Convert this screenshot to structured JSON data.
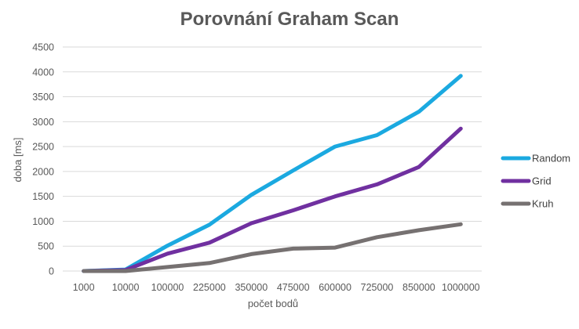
{
  "chart_data": {
    "type": "line",
    "title": "Porovnání Graham Scan",
    "xlabel": "počet bodů",
    "ylabel": "doba [ms]",
    "categories": [
      "1000",
      "10000",
      "100000",
      "225000",
      "350000",
      "475000",
      "600000",
      "725000",
      "850000",
      "1000000"
    ],
    "ylim": [
      0,
      4500
    ],
    "yticks": [
      0,
      500,
      1000,
      1500,
      2000,
      2500,
      3000,
      3500,
      4000,
      4500
    ],
    "grid": true,
    "legend_position": "right",
    "series": [
      {
        "name": "Random",
        "color": "#1BA9E0",
        "values": [
          0,
          30,
          510,
          930,
          1530,
          2020,
          2500,
          2730,
          3200,
          3920
        ]
      },
      {
        "name": "Grid",
        "color": "#7030A0",
        "values": [
          0,
          20,
          350,
          570,
          960,
          1220,
          1500,
          1740,
          2090,
          2860
        ]
      },
      {
        "name": "Kruh",
        "color": "#767171",
        "values": [
          0,
          0,
          80,
          160,
          340,
          450,
          470,
          680,
          820,
          940
        ]
      }
    ]
  }
}
